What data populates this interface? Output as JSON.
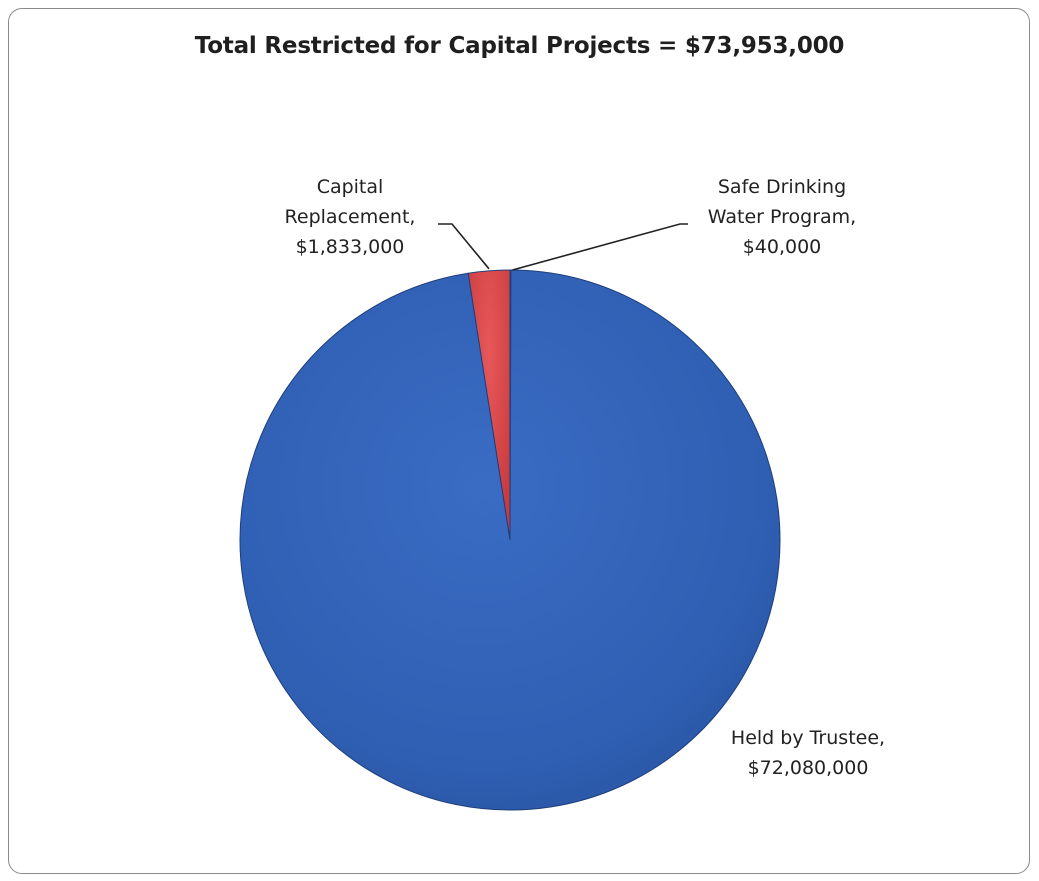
{
  "chart_data": {
    "type": "pie",
    "title": "Total Restricted for Capital Projects = $73,953,000",
    "slices": [
      {
        "name": "Capital Replacement",
        "value": 1833000,
        "label_lines": [
          "Capital",
          "Replacement,",
          "$1,833,000"
        ],
        "color": "#e0464a"
      },
      {
        "name": "Safe Drinking Water Program",
        "value": 40000,
        "label_lines": [
          "Safe Drinking",
          "Water Program,",
          "$40,000"
        ],
        "color": "#2f62b5"
      },
      {
        "name": "Held by Trustee",
        "value": 72080000,
        "label_lines": [
          "Held by Trustee,",
          "$72,080,000"
        ],
        "color": "#3360b8"
      }
    ],
    "start": "top",
    "direction": "counterclockwise-from-top (Held by Trustee clockwise)",
    "legend": "none (data labels)"
  }
}
